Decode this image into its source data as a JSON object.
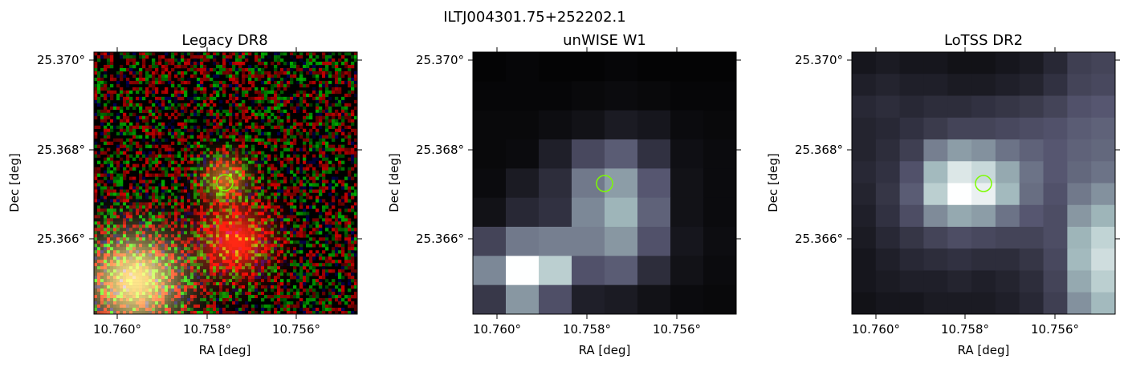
{
  "figure": {
    "suptitle": "ILTJ004301.75+252202.1",
    "panels": [
      {
        "title": "Legacy DR8",
        "xlabel": "RA [deg]",
        "ylabel": "Dec [deg]",
        "xticks": [
          "10.760°",
          "10.758°",
          "10.756°"
        ],
        "yticks": [
          "25.370°",
          "25.368°",
          "25.366°"
        ],
        "marker_color": "#7CFC00",
        "image_kind": "rgb-noise"
      },
      {
        "title": "unWISE W1",
        "xlabel": "RA [deg]",
        "ylabel": "Dec [deg]",
        "xticks": [
          "10.760°",
          "10.758°",
          "10.756°"
        ],
        "yticks": [
          "25.370°",
          "25.368°",
          "25.366°"
        ],
        "marker_color": "#7CFC00",
        "image_kind": "bone-grid"
      },
      {
        "title": "LoTSS DR2",
        "xlabel": "RA [deg]",
        "ylabel": "Dec [deg]",
        "xticks": [
          "10.760°",
          "10.758°",
          "10.756°"
        ],
        "yticks": [
          "25.370°",
          "25.368°",
          "25.366°"
        ],
        "marker_color": "#7CFC00",
        "image_kind": "bone-grid"
      }
    ]
  }
}
